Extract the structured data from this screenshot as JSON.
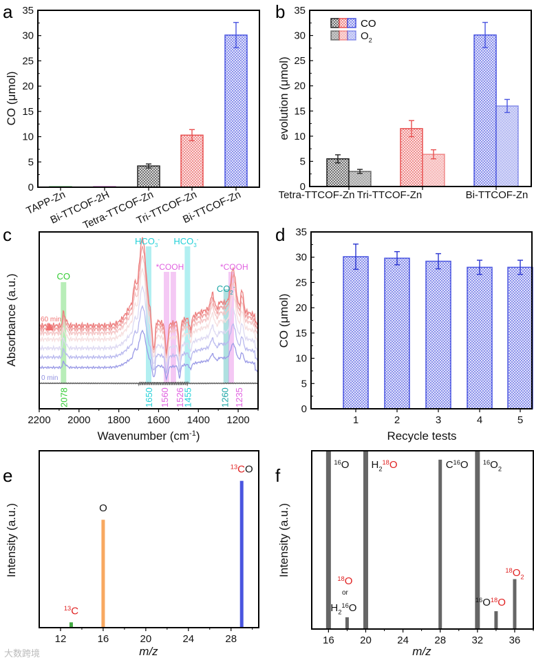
{
  "chart_data": [
    {
      "id": "a",
      "panel_label": "a",
      "type": "bar",
      "ylabel": "CO (μmol)",
      "ylim": [
        0,
        35
      ],
      "yticks": [
        0,
        5,
        10,
        15,
        20,
        25,
        30,
        35
      ],
      "categories": [
        "TAPP-Zn",
        "Bi-TTCOF-2H",
        "Tetra-TTCOF-Zn",
        "Tri-TTCOF-Zn",
        "Bi-TTCOF-Zn"
      ],
      "values": [
        0.1,
        0.1,
        4.2,
        10.3,
        30.1
      ],
      "errors": [
        0,
        0,
        0.4,
        1.1,
        2.5
      ],
      "colors": [
        "#3cb44b",
        "#c040c0",
        "#222222",
        "#e85050",
        "#4a55e0"
      ]
    },
    {
      "id": "b",
      "panel_label": "b",
      "type": "bar",
      "ylabel": "evolution (μmol)",
      "ylim": [
        0,
        35
      ],
      "yticks": [
        0,
        5,
        10,
        15,
        20,
        25,
        30,
        35
      ],
      "categories": [
        "Tetra-TTCOF-Zn",
        "Tri-TTCOF-Zn",
        "Bi-TTCOF-Zn"
      ],
      "colors": [
        "#222222",
        "#e85050",
        "#4a55e0"
      ],
      "legend": "top-left",
      "series": [
        {
          "name": "CO",
          "values": [
            5.5,
            11.5,
            30.1
          ],
          "errors": [
            0.8,
            1.6,
            2.5
          ]
        },
        {
          "name": "O2",
          "name_main": "O",
          "name_sub": "2",
          "values": [
            3.0,
            6.4,
            16.0
          ],
          "errors": [
            0.4,
            0.9,
            1.3
          ]
        }
      ]
    },
    {
      "id": "c",
      "panel_label": "c",
      "type": "line",
      "xlabel": "Wavenumber (cm",
      "xlabel_sup": "-1",
      "xlabel_end": ")",
      "ylabel": "Absorbance (a.u.)",
      "xlim": [
        2200,
        1100
      ],
      "xticks": [
        2200,
        2000,
        1800,
        1600,
        1400,
        1200
      ],
      "time_start_label": "0 min",
      "time_end_label": "60 min",
      "num_curves": 7,
      "bands": [
        {
          "wavenumber": 2078,
          "label": "2078",
          "species": "CO",
          "color": "#33cc33"
        },
        {
          "wavenumber": 1650,
          "label": "1650",
          "species": "HCO3-",
          "species_main": "HCO",
          "species_sub": "3",
          "species_sup": "-",
          "color": "#22d0d8"
        },
        {
          "wavenumber": 1560,
          "label": "1560",
          "species": "*COOH",
          "color": "#e060e0"
        },
        {
          "wavenumber": 1526,
          "label": "1526",
          "species": "*COOH",
          "color": "#e060e0"
        },
        {
          "wavenumber": 1455,
          "label": "1455",
          "species": "HCO3-",
          "species_main": "HCO",
          "species_sub": "3",
          "species_sup": "-",
          "color": "#22d0d8"
        },
        {
          "wavenumber": 1260,
          "label": "1260",
          "species": "CO2-",
          "species_main": "CO",
          "species_sub": "2",
          "species_sup": "-",
          "color": "#1aa5a5"
        },
        {
          "wavenumber": 1235,
          "label": "1235",
          "species": "*COOH",
          "color": "#e060e0"
        }
      ],
      "species_labels": {
        "co": "CO",
        "hco3": "HCO",
        "cooh": "*COOH",
        "co2": "CO"
      }
    },
    {
      "id": "d",
      "panel_label": "d",
      "type": "bar",
      "xlabel": "Recycle tests",
      "ylabel": "CO (μmol)",
      "ylim": [
        0,
        35
      ],
      "yticks": [
        0,
        5,
        10,
        15,
        20,
        25,
        30,
        35
      ],
      "categories": [
        "1",
        "2",
        "3",
        "4",
        "5"
      ],
      "values": [
        30.1,
        29.8,
        29.2,
        28.0,
        28.0
      ],
      "errors": [
        2.5,
        1.3,
        1.5,
        1.4,
        1.4
      ],
      "color": "#4a55e0"
    },
    {
      "id": "e",
      "panel_label": "e",
      "type": "bar",
      "xlabel": "m/z",
      "ylabel": "Intensity (a.u.)",
      "xlim": [
        10,
        30.6
      ],
      "xticks": [
        12,
        16,
        20,
        24,
        28
      ],
      "ylim": [
        0,
        1
      ],
      "peaks": [
        {
          "x": 13,
          "y": 0.03,
          "color": "#44aa44",
          "label": [
            {
              "t": "13",
              "sup": true,
              "c": "#e02020"
            },
            {
              "t": "C",
              "c": "#e02020"
            }
          ]
        },
        {
          "x": 16,
          "y": 0.61,
          "color": "#f8a860",
          "label": [
            {
              "t": "O",
              "c": "#111"
            }
          ]
        },
        {
          "x": 29,
          "y": 0.83,
          "color": "#4a55e0",
          "label": [
            {
              "t": "13",
              "sup": true,
              "c": "#e02020"
            },
            {
              "t": "C",
              "c": "#e02020"
            },
            {
              "t": "O",
              "c": "#111"
            }
          ]
        }
      ]
    },
    {
      "id": "f",
      "panel_label": "f",
      "type": "bar",
      "xlabel": "m/z",
      "ylabel": "Intensity (a.u.)",
      "xlim": [
        14.2,
        38
      ],
      "xticks": [
        16,
        20,
        24,
        28,
        32,
        36
      ],
      "ylim": [
        0,
        1
      ],
      "peaks": [
        {
          "x": 16,
          "y": 1.0,
          "label": [
            {
              "t": "16",
              "sup": true,
              "c": "#111"
            },
            {
              "t": "O",
              "c": "#111"
            }
          ]
        },
        {
          "x": 18,
          "y": 0.066,
          "label": [
            {
              "t": "H",
              "c": "#111"
            },
            {
              "t": "2",
              "sub": true,
              "c": "#111"
            },
            {
              "t": "16",
              "sup": true,
              "c": "#111"
            },
            {
              "t": "O",
              "c": "#111"
            }
          ],
          "label_alt": [
            {
              "t": "18",
              "sup": true,
              "c": "#e02020"
            },
            {
              "t": "O",
              "c": "#e02020"
            }
          ],
          "or_text": "or"
        },
        {
          "x": 20,
          "y": 1.0,
          "label": [
            {
              "t": "H",
              "c": "#111"
            },
            {
              "t": "2",
              "sub": true,
              "c": "#111"
            },
            {
              "t": "18",
              "sup": true,
              "c": "#e02020"
            },
            {
              "t": "O",
              "c": "#e02020"
            }
          ]
        },
        {
          "x": 28,
          "y": 0.95,
          "label": [
            {
              "t": "C",
              "c": "#111"
            },
            {
              "t": "16",
              "sup": true,
              "c": "#111"
            },
            {
              "t": "O",
              "c": "#111"
            }
          ]
        },
        {
          "x": 32,
          "y": 1.0,
          "label": [
            {
              "t": "16",
              "sup": true,
              "c": "#111"
            },
            {
              "t": "O",
              "c": "#111"
            },
            {
              "t": "2",
              "sub": true,
              "c": "#111"
            }
          ]
        },
        {
          "x": 34,
          "y": 0.1,
          "label": [
            {
              "t": "16",
              "sup": true,
              "c": "#111"
            },
            {
              "t": "O",
              "c": "#111"
            },
            {
              "t": "18",
              "sup": true,
              "c": "#e02020"
            },
            {
              "t": "O",
              "c": "#e02020"
            }
          ]
        },
        {
          "x": 36,
          "y": 0.28,
          "label": [
            {
              "t": "18",
              "sup": true,
              "c": "#e02020"
            },
            {
              "t": "O",
              "c": "#e02020"
            },
            {
              "t": "2",
              "sub": true,
              "c": "#e02020"
            }
          ]
        }
      ],
      "color": "#666666"
    }
  ],
  "watermark": "大数跨境"
}
